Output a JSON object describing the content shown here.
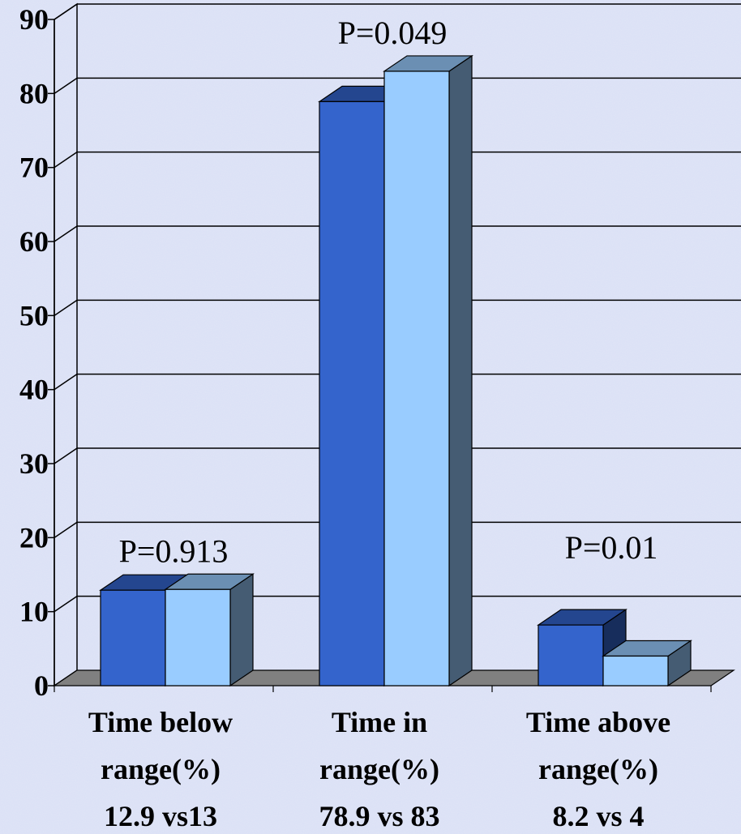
{
  "chart_data": {
    "type": "bar",
    "categories": [
      "Time below range(%)",
      "Time in range(%)",
      "Time above range(%)"
    ],
    "category_lines": [
      [
        "Time below",
        "range(%)",
        "12.9 vs13"
      ],
      [
        "Time in",
        "range(%)",
        "78.9 vs 83"
      ],
      [
        "Time above",
        "range(%)",
        "8.2 vs 4"
      ]
    ],
    "series": [
      {
        "values": [
          12.9,
          78.9,
          8.2
        ],
        "color": "#3464cc"
      },
      {
        "values": [
          13,
          83,
          4
        ],
        "color": "#99ccff"
      }
    ],
    "annotations": [
      "P=0.913",
      "P=0.049",
      "P=0.01"
    ],
    "yticks": [
      "0",
      "10",
      "20",
      "30",
      "40",
      "50",
      "60",
      "70",
      "80",
      "90"
    ],
    "ylim": [
      0,
      90
    ],
    "grid": true,
    "background_color": "#d9dff5",
    "floor_color": "#808080"
  }
}
